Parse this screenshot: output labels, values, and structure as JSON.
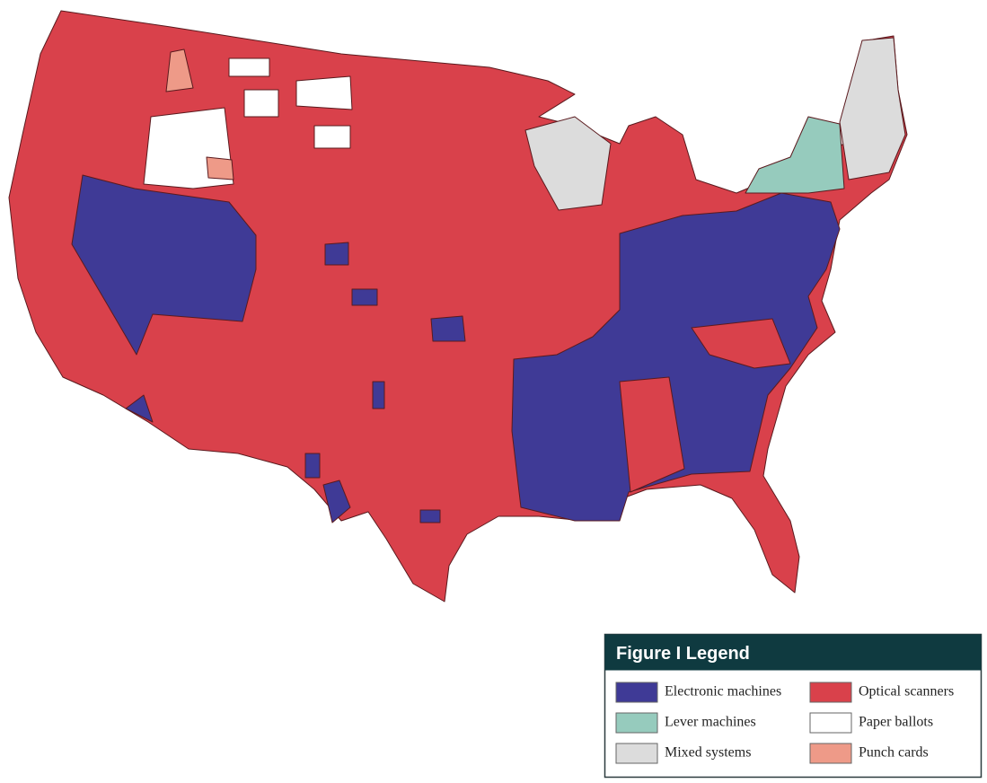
{
  "legend": {
    "title": "Figure I Legend",
    "items": [
      {
        "label": "Electronic machines",
        "color": "#3f3a96"
      },
      {
        "label": "Optical scanners",
        "color": "#d9414b"
      },
      {
        "label": "Lever machines",
        "color": "#96cbbd"
      },
      {
        "label": "Paper ballots",
        "color": "#ffffff"
      },
      {
        "label": "Mixed systems",
        "color": "#dcdcdc"
      },
      {
        "label": "Punch cards",
        "color": "#ee9a88"
      }
    ]
  }
}
